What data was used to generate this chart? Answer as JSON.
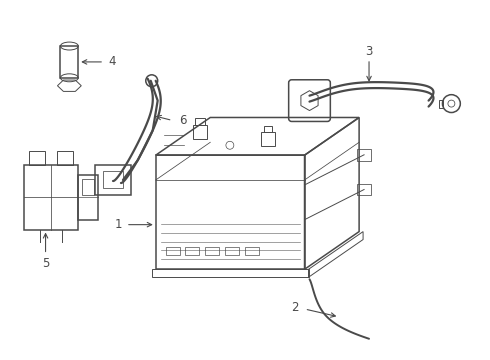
{
  "bg_color": "#ffffff",
  "line_color": "#4a4a4a",
  "line_width": 1.1,
  "thin_line": 0.7,
  "label_fontsize": 8.5,
  "figsize": [
    4.9,
    3.6
  ],
  "dpi": 100
}
